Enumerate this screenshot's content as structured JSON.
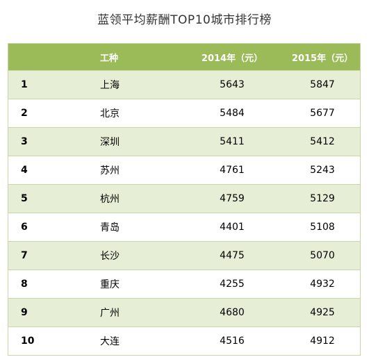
{
  "title": "蓝领平均薪酬TOP10城市排行榜",
  "chart_data": {
    "type": "table",
    "title": "蓝领平均薪酬TOP10城市排行榜",
    "columns": [
      "",
      "工种",
      "2014年（元）",
      "2015年（元）"
    ],
    "rows": [
      {
        "rank": "1",
        "city": "上海",
        "y2014": 5643,
        "y2015": 5847
      },
      {
        "rank": "2",
        "city": "北京",
        "y2014": 5484,
        "y2015": 5677
      },
      {
        "rank": "3",
        "city": "深圳",
        "y2014": 5411,
        "y2015": 5412
      },
      {
        "rank": "4",
        "city": "苏州",
        "y2014": 4761,
        "y2015": 5243
      },
      {
        "rank": "5",
        "city": "杭州",
        "y2014": 4759,
        "y2015": 5129
      },
      {
        "rank": "6",
        "city": "青岛",
        "y2014": 4401,
        "y2015": 5108
      },
      {
        "rank": "7",
        "city": "长沙",
        "y2014": 4475,
        "y2015": 5070
      },
      {
        "rank": "8",
        "city": "重庆",
        "y2014": 4255,
        "y2015": 4932
      },
      {
        "rank": "9",
        "city": "广州",
        "y2014": 4680,
        "y2015": 4925
      },
      {
        "rank": "10",
        "city": "大连",
        "y2014": 4516,
        "y2015": 4912
      }
    ]
  },
  "colors": {
    "header_bg": "#9bbb59",
    "band_bg": "#e6eed5",
    "border": "#c9d7a8"
  }
}
